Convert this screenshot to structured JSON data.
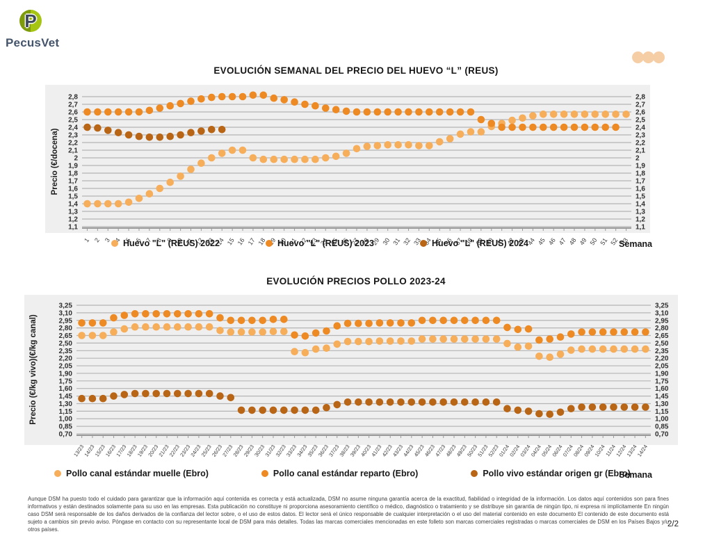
{
  "logo": {
    "text": "PecusVet"
  },
  "decor": {
    "header_dots_color": "#F6CEA6",
    "panel_bg": "#EFEFEF",
    "gridline": "#b5b5b5"
  },
  "chart_data": [
    {
      "type": "scatter",
      "title": "EVOLUCIÓN SEMANAL DEL PRECIO DEL HUEVO “L” (REUS)",
      "ylabel": "Precio (€/docena)",
      "xlabel": "Semana",
      "ylim": [
        1.1,
        2.8
      ],
      "ytick_step": 0.1,
      "grid": true,
      "legend_position": "bottom",
      "yticks": [
        "2,8",
        "2,7",
        "2,6",
        "2,5",
        "2,4",
        "2,3",
        "2,2",
        "2,1",
        "2",
        "1,9",
        "1,8",
        "1,7",
        "1,6",
        "1,5",
        "1,4",
        "1,3",
        "1,2",
        "1,1"
      ],
      "categories": [
        "1",
        "2",
        "3",
        "4",
        "5",
        "6",
        "7",
        "8",
        "9",
        "10",
        "11",
        "12",
        "13",
        "14",
        "15",
        "16",
        "17",
        "18",
        "19",
        "20",
        "21",
        "22",
        "23",
        "24",
        "25",
        "26",
        "27",
        "28",
        "29",
        "30",
        "31",
        "32",
        "33",
        "34",
        "35",
        "36",
        "37",
        "38",
        "39",
        "40",
        "41",
        "42",
        "43",
        "44",
        "45",
        "46",
        "47",
        "48",
        "49",
        "50",
        "51",
        "52",
        "53"
      ],
      "series": [
        {
          "name": "Huevo \"L\" (REUS) 2022",
          "color": "#F7AE5B",
          "values": [
            1.4,
            1.4,
            1.4,
            1.4,
            1.42,
            1.47,
            1.53,
            1.6,
            1.68,
            1.76,
            1.85,
            1.93,
            2.0,
            2.06,
            2.1,
            2.1,
            2.0,
            1.98,
            1.98,
            1.98,
            1.98,
            1.98,
            1.98,
            2.0,
            2.02,
            2.06,
            2.12,
            2.15,
            2.16,
            2.17,
            2.17,
            2.17,
            2.16,
            2.16,
            2.21,
            2.25,
            2.31,
            2.34,
            2.34,
            2.41,
            2.45,
            2.49,
            2.52,
            2.55,
            2.57,
            2.57,
            2.57,
            2.57,
            2.57,
            2.57,
            2.57,
            2.57,
            2.57
          ]
        },
        {
          "name": "Huevo \"L\" (REUS) 2023",
          "color": "#EE8A23",
          "values": [
            2.6,
            2.6,
            2.6,
            2.6,
            2.6,
            2.6,
            2.62,
            2.65,
            2.68,
            2.71,
            2.74,
            2.77,
            2.79,
            2.8,
            2.8,
            2.8,
            2.82,
            2.82,
            2.78,
            2.76,
            2.73,
            2.7,
            2.68,
            2.65,
            2.63,
            2.61,
            2.6,
            2.6,
            2.6,
            2.6,
            2.6,
            2.6,
            2.6,
            2.6,
            2.6,
            2.6,
            2.6,
            2.6,
            2.5,
            2.45,
            2.4,
            2.4,
            2.4,
            2.4,
            2.4,
            2.4,
            2.4,
            2.4,
            2.4,
            2.4,
            2.4,
            2.4
          ]
        },
        {
          "name": "Huevo \"L\" (REUS) 2024",
          "color": "#B96516",
          "values": [
            2.4,
            2.39,
            2.36,
            2.33,
            2.3,
            2.28,
            2.27,
            2.27,
            2.28,
            2.3,
            2.33,
            2.35,
            2.37,
            2.37
          ]
        }
      ]
    },
    {
      "type": "scatter",
      "title": "EVOLUCIÓN PRECIOS POLLO 2023-24",
      "ylabel": "Precio (€/kg vivo)(€/kg canal)",
      "xlabel": "Semana",
      "ylim": [
        0.7,
        3.25
      ],
      "ytick_step": 0.15,
      "grid": true,
      "legend_position": "bottom",
      "yticks": [
        "3,25",
        "3,10",
        "2,95",
        "2,80",
        "2,65",
        "2,50",
        "2,35",
        "2,20",
        "2,05",
        "1,90",
        "1,75",
        "1,60",
        "1,45",
        "1,30",
        "1,15",
        "1,00",
        "0,85",
        "0,70"
      ],
      "categories": [
        "13/23",
        "14/23",
        "15/23",
        "16/23",
        "17/23",
        "18/23",
        "19/23",
        "20/23",
        "21/23",
        "22/23",
        "23/23",
        "24/23",
        "25/23",
        "26/23",
        "27/23",
        "28/23",
        "29/23",
        "30/23",
        "31/23",
        "32/23",
        "33/23",
        "34/23",
        "35/23",
        "36/23",
        "37/23",
        "38/23",
        "39/23",
        "40/23",
        "41/23",
        "42/23",
        "43/23",
        "44/23",
        "45/23",
        "46/23",
        "47/23",
        "48/23",
        "49/23",
        "50/23",
        "51/23",
        "52/23",
        "01/24",
        "02/24",
        "03/24",
        "04/24",
        "05/24",
        "06/24",
        "07/24",
        "08/24",
        "09/24",
        "10/24",
        "11/24",
        "12/24",
        "13/24",
        "14/24"
      ],
      "series": [
        {
          "name": "Pollo canal estándar muelle (Ebro)",
          "color": "#F7AE5B",
          "values": [
            2.65,
            2.65,
            2.65,
            2.72,
            2.78,
            2.82,
            2.82,
            2.82,
            2.82,
            2.82,
            2.82,
            2.82,
            2.82,
            2.75,
            2.72,
            2.72,
            2.72,
            2.72,
            2.73,
            2.73,
            2.33,
            2.31,
            2.38,
            2.4,
            2.48,
            2.53,
            2.53,
            2.53,
            2.54,
            2.54,
            2.54,
            2.54,
            2.58,
            2.58,
            2.58,
            2.58,
            2.58,
            2.58,
            2.58,
            2.58,
            2.49,
            2.42,
            2.44,
            2.24,
            2.22,
            2.28,
            2.36,
            2.38,
            2.38,
            2.38,
            2.38,
            2.38,
            2.38,
            2.38
          ]
        },
        {
          "name": "Pollo canal estándar reparto (Ebro)",
          "color": "#EE8A23",
          "values": [
            2.9,
            2.9,
            2.9,
            3.0,
            3.05,
            3.08,
            3.08,
            3.08,
            3.08,
            3.08,
            3.08,
            3.08,
            3.08,
            3.0,
            2.95,
            2.95,
            2.95,
            2.95,
            2.97,
            2.97,
            2.66,
            2.64,
            2.7,
            2.74,
            2.84,
            2.89,
            2.89,
            2.89,
            2.9,
            2.9,
            2.9,
            2.9,
            2.95,
            2.95,
            2.95,
            2.95,
            2.95,
            2.95,
            2.95,
            2.95,
            2.81,
            2.77,
            2.78,
            2.56,
            2.58,
            2.62,
            2.68,
            2.72,
            2.72,
            2.72,
            2.72,
            2.72,
            2.72,
            2.72
          ]
        },
        {
          "name": "Pollo vivo estándar origen gr (Ebro)",
          "color": "#B96516",
          "values": [
            1.4,
            1.4,
            1.4,
            1.45,
            1.48,
            1.5,
            1.5,
            1.5,
            1.5,
            1.5,
            1.5,
            1.5,
            1.5,
            1.45,
            1.42,
            1.17,
            1.17,
            1.17,
            1.17,
            1.17,
            1.17,
            1.17,
            1.17,
            1.22,
            1.28,
            1.33,
            1.33,
            1.33,
            1.33,
            1.33,
            1.33,
            1.33,
            1.33,
            1.33,
            1.33,
            1.33,
            1.33,
            1.33,
            1.33,
            1.33,
            1.2,
            1.17,
            1.15,
            1.1,
            1.09,
            1.13,
            1.2,
            1.23,
            1.23,
            1.23,
            1.23,
            1.23,
            1.23,
            1.23
          ]
        }
      ]
    }
  ],
  "footer": {
    "disclaimer": "Aunque DSM ha puesto todo el cuidado para garantizar que la información aquí contenida es correcta y está actualizada, DSM no asume ninguna garantía acerca de la exactitud, fiabilidad o integridad de la información. Los datos aquí contenidos son para fines informativos y están destinados solamente para su uso en las empresas. Esta publicación no constituye ni proporciona asesoramiento científico o médico, diagnóstico o tratamiento y se distribuye sin garantía de ningún tipo, ni expresa ni implícitamente En ningún caso DSM será responsable de los daños derivados de la confianza del lector sobre, o el uso de estos datos. El lector será el único responsable de cualquier interpretación o el uso del material contenido en este documento El contenido de este documento está sujeto a cambios sin previo aviso. Póngase en contacto con su representante local de DSM para más detalles. Todas las marcas comerciales mencionadas en este folleto son marcas comerciales registradas o marcas comerciales de DSM en los Países Bajos y/u otros países.",
    "page": "2/2"
  }
}
